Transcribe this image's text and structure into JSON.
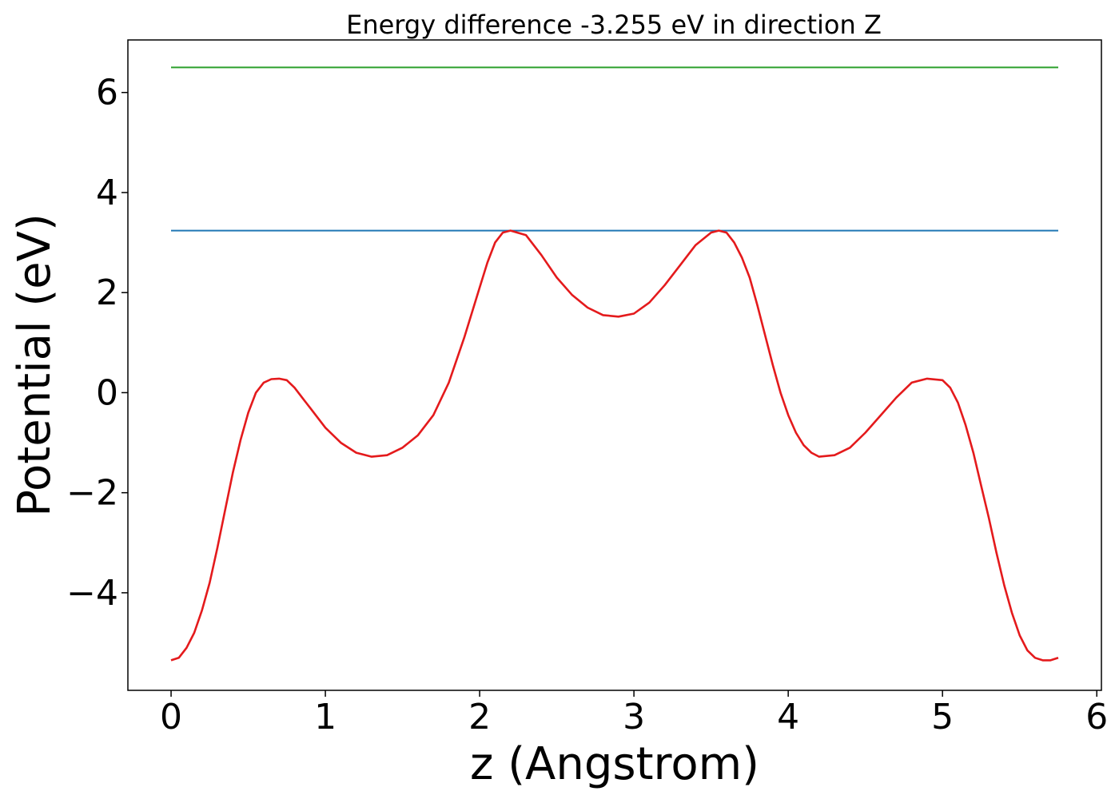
{
  "chart_data": {
    "type": "line",
    "title": "Energy difference -3.255 eV in direction Z",
    "xlabel": "z (Angstrom)",
    "ylabel": "Potential (eV)",
    "xlim": [
      -0.28,
      6.03
    ],
    "ylim": [
      -5.95,
      7.05
    ],
    "x_ticks": [
      0,
      1,
      2,
      3,
      4,
      5,
      6
    ],
    "x_tick_labels": [
      "0",
      "1",
      "2",
      "3",
      "4",
      "5",
      "6"
    ],
    "y_ticks": [
      -4,
      -2,
      0,
      2,
      4,
      6
    ],
    "y_tick_labels": [
      "−4",
      "−2",
      "0",
      "2",
      "4",
      "6"
    ],
    "grid": false,
    "series": [
      {
        "color": "#2ca02c",
        "x": [
          0,
          5.75
        ],
        "y": [
          6.5,
          6.5
        ]
      },
      {
        "color": "#1f77b4",
        "x": [
          0,
          5.75
        ],
        "y": [
          3.24,
          3.24
        ]
      },
      {
        "color": "#e41a1c",
        "x": [
          0,
          0.05,
          0.1,
          0.15,
          0.2,
          0.25,
          0.3,
          0.35,
          0.4,
          0.45,
          0.5,
          0.55,
          0.6,
          0.65,
          0.7,
          0.75,
          0.8,
          0.85,
          0.9,
          0.95,
          1.0,
          1.1,
          1.2,
          1.3,
          1.4,
          1.5,
          1.6,
          1.7,
          1.8,
          1.9,
          2.0,
          2.05,
          2.1,
          2.15,
          2.2,
          2.3,
          2.4,
          2.5,
          2.6,
          2.7,
          2.8,
          2.9,
          3.0,
          3.1,
          3.2,
          3.3,
          3.4,
          3.5,
          3.55,
          3.6,
          3.65,
          3.7,
          3.75,
          3.8,
          3.85,
          3.9,
          3.95,
          4.0,
          4.05,
          4.1,
          4.15,
          4.2,
          4.3,
          4.4,
          4.5,
          4.6,
          4.7,
          4.8,
          4.9,
          5.0,
          5.05,
          5.1,
          5.15,
          5.2,
          5.25,
          5.3,
          5.35,
          5.4,
          5.45,
          5.5,
          5.55,
          5.6,
          5.65,
          5.7,
          5.75
        ],
        "y": [
          -5.35,
          -5.3,
          -5.1,
          -4.8,
          -4.35,
          -3.8,
          -3.1,
          -2.35,
          -1.6,
          -0.95,
          -0.4,
          0.0,
          0.2,
          0.27,
          0.28,
          0.25,
          0.1,
          -0.1,
          -0.3,
          -0.5,
          -0.7,
          -1.0,
          -1.2,
          -1.28,
          -1.25,
          -1.1,
          -0.85,
          -0.45,
          0.2,
          1.1,
          2.1,
          2.6,
          3.0,
          3.2,
          3.24,
          3.15,
          2.75,
          2.3,
          1.95,
          1.7,
          1.55,
          1.52,
          1.58,
          1.8,
          2.15,
          2.55,
          2.95,
          3.2,
          3.24,
          3.2,
          3.0,
          2.7,
          2.3,
          1.75,
          1.15,
          0.55,
          0.0,
          -0.45,
          -0.8,
          -1.05,
          -1.2,
          -1.28,
          -1.25,
          -1.1,
          -0.8,
          -0.45,
          -0.1,
          0.2,
          0.28,
          0.25,
          0.1,
          -0.2,
          -0.65,
          -1.2,
          -1.85,
          -2.5,
          -3.2,
          -3.85,
          -4.4,
          -4.85,
          -5.15,
          -5.3,
          -5.35,
          -5.35,
          -5.3
        ]
      }
    ]
  }
}
